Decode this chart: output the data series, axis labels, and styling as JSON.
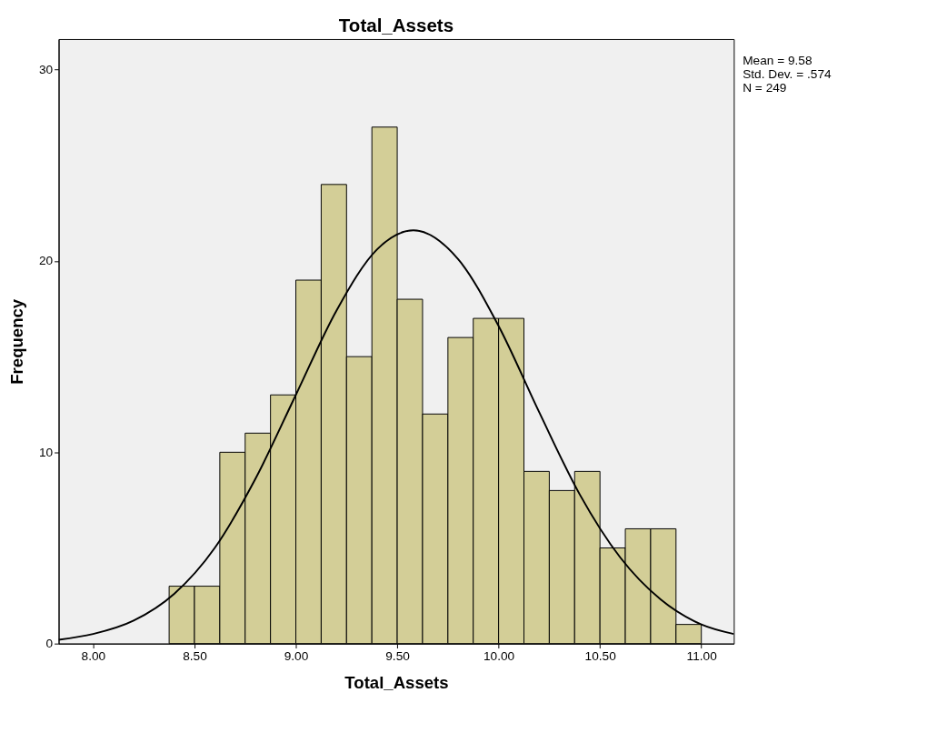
{
  "chart_data": {
    "type": "histogram",
    "title": "Total_Assets",
    "xlabel": "Total_Assets",
    "ylabel": "Frequency",
    "bins": [
      8.375,
      8.5,
      8.625,
      8.75,
      8.875,
      9.0,
      9.125,
      9.25,
      9.375,
      9.5,
      9.625,
      9.75,
      9.875,
      10.0,
      10.125,
      10.25,
      10.375,
      10.5,
      10.625,
      10.75,
      10.875,
      11.0
    ],
    "values": [
      3,
      3,
      10,
      11,
      13,
      19,
      24,
      15,
      27,
      18,
      12,
      16,
      17,
      17,
      9,
      8,
      9,
      5,
      6,
      6,
      1
    ],
    "color": "#d3ce97",
    "series": [
      {
        "type": "line",
        "color": "#000000",
        "x": [
          7.83,
          8.0,
          8.2,
          8.4,
          8.6,
          8.8,
          9.0,
          9.2,
          9.4,
          9.58,
          9.8,
          10.0,
          10.2,
          10.4,
          10.6,
          10.8,
          11.0,
          11.16
        ],
        "values": [
          0.2,
          0.5,
          1.2,
          2.6,
          5.0,
          8.6,
          13.0,
          17.4,
          20.6,
          21.6,
          20.1,
          16.6,
          12.1,
          7.8,
          4.5,
          2.3,
          1.0,
          0.5
        ]
      }
    ],
    "xlim": [
      7.83,
      11.16
    ],
    "ylim": [
      0,
      31.6
    ],
    "xticks": [
      {
        "value": 8,
        "label": "8.00"
      },
      {
        "value": 8.5,
        "label": "8.50"
      },
      {
        "value": 9,
        "label": "9.00"
      },
      {
        "value": 9.5,
        "label": "9.50"
      },
      {
        "value": 10,
        "label": "10.00"
      },
      {
        "value": 10.5,
        "label": "10.50"
      },
      {
        "value": 11,
        "label": "11.00"
      }
    ],
    "yticks": [
      0,
      10,
      20,
      30
    ],
    "grid": false,
    "annotations": [
      "Mean = 9.58",
      "Std. Dev. = .574",
      "N = 249"
    ]
  }
}
